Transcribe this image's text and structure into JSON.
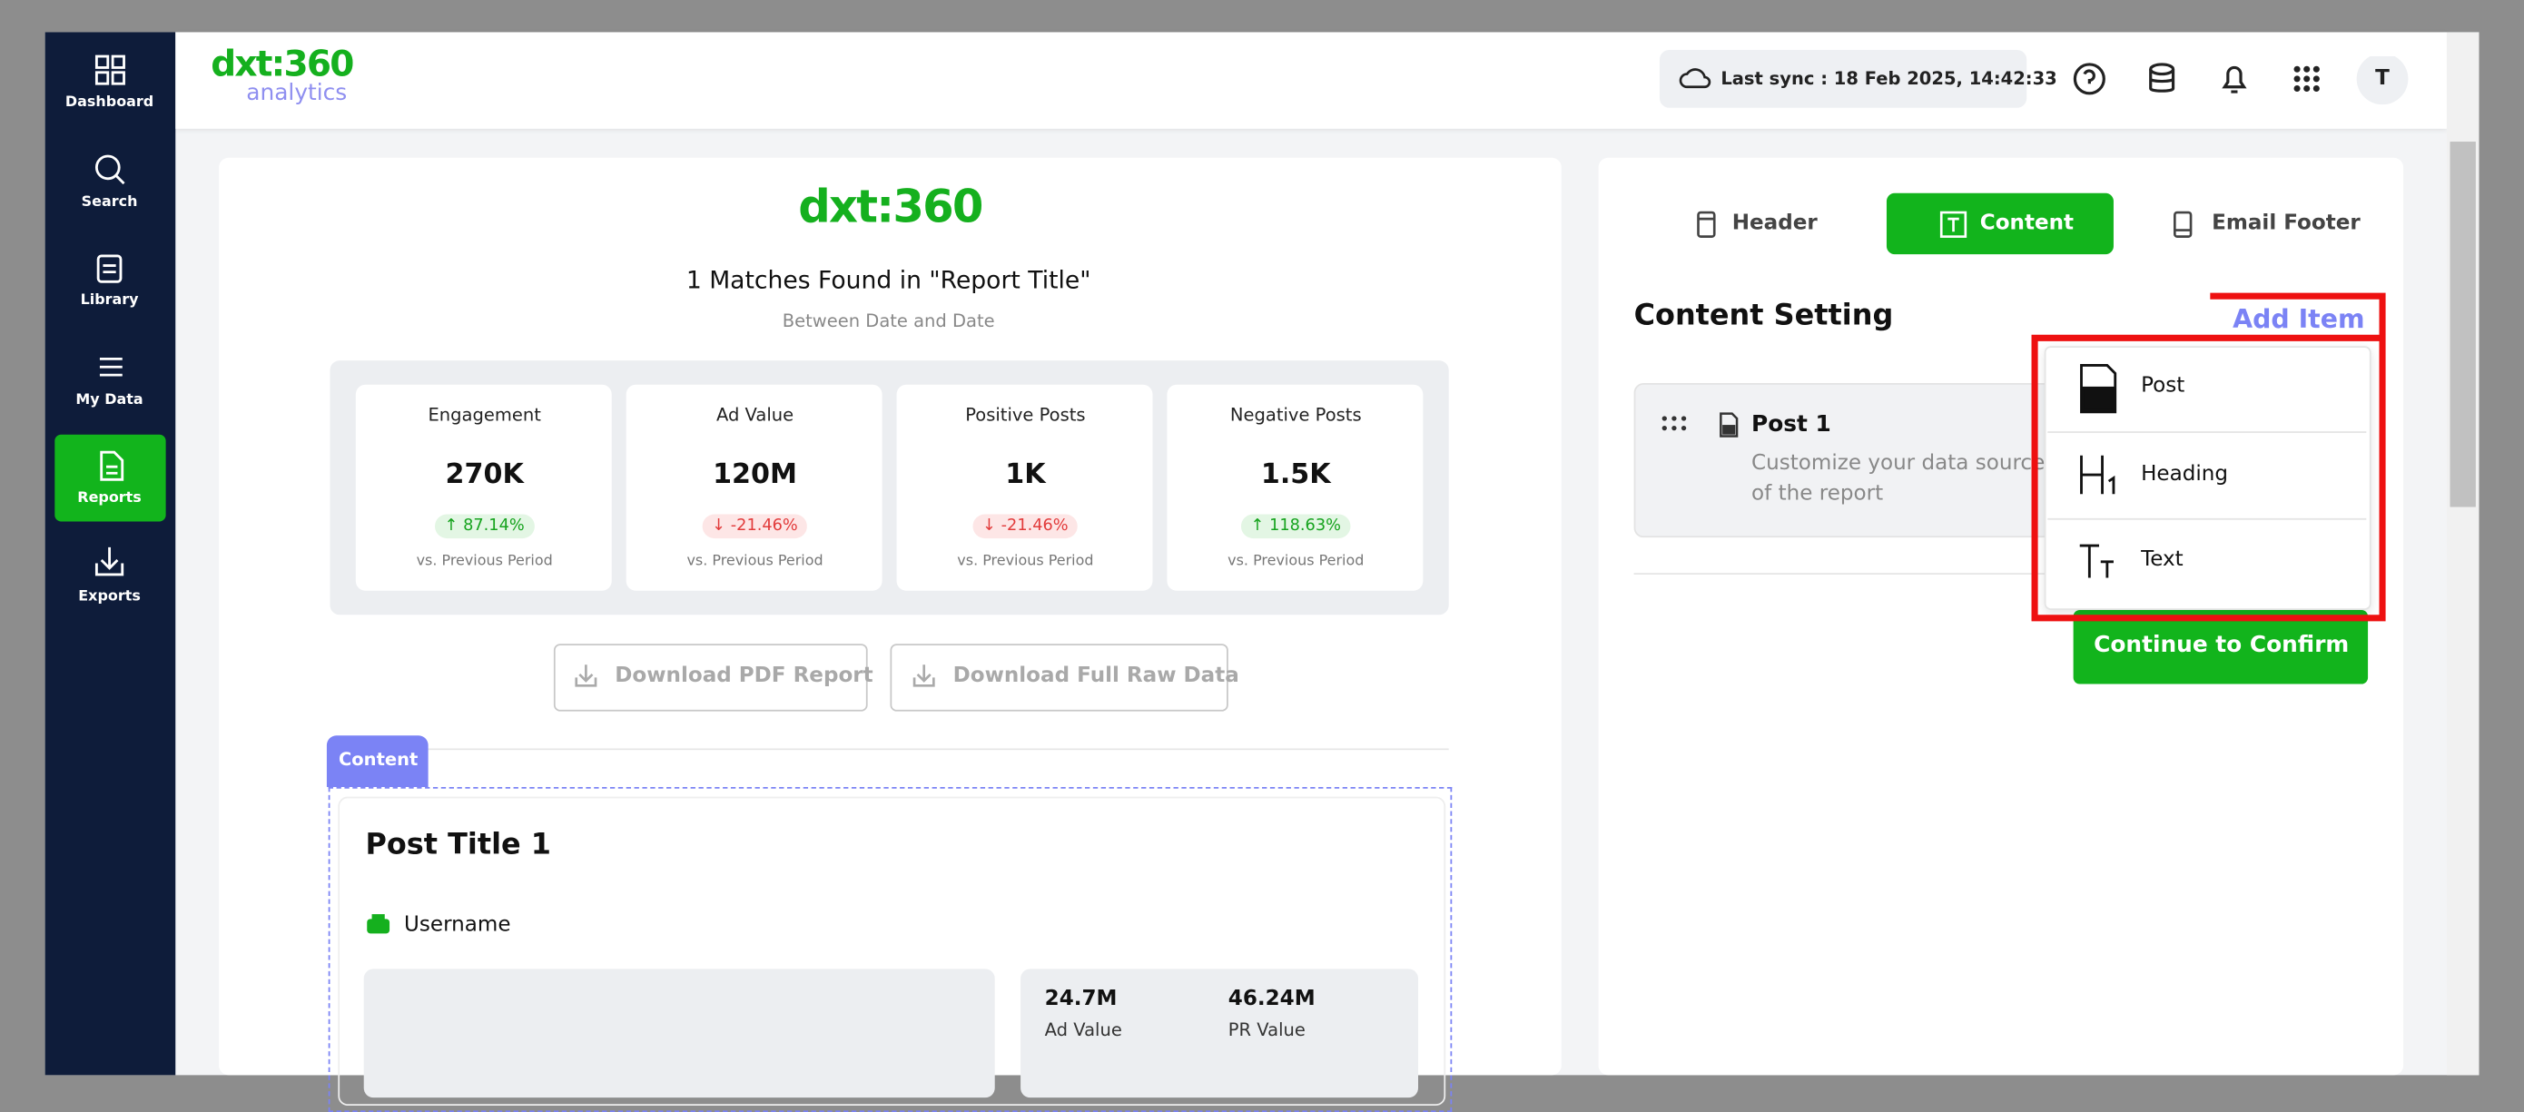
{
  "sidebar": {
    "items": [
      "Dashboard",
      "Search",
      "Library",
      "My Data",
      "Reports",
      "Exports"
    ]
  },
  "topbar": {
    "logo": "dxt:360",
    "logo_sub": "analytics",
    "sync": "Last sync : 18 Feb 2025, 14:42:33",
    "avatar": "T"
  },
  "report": {
    "logo": "dxt:360",
    "title": "1 Matches Found in \"Report Title\"",
    "subtitle": "Between Date and Date",
    "metrics": [
      {
        "label": "Engagement",
        "value": "270K",
        "change": "87.14%",
        "note": "vs. Previous Period"
      },
      {
        "label": "Ad Value",
        "value": "120M",
        "change": "-21.46%",
        "note": "vs. Previous Period"
      },
      {
        "label": "Positive Posts",
        "value": "1K",
        "change": "-21.46%",
        "note": "vs. Previous Period"
      },
      {
        "label": "Negative Posts",
        "value": "1.5K",
        "change": "118.63%",
        "note": "vs. Previous Period"
      }
    ],
    "buttons": [
      "Download PDF Report",
      "Download Full Raw Data"
    ],
    "content_tab": "Content",
    "post": {
      "title": "Post Title 1",
      "username": "Username",
      "stats": [
        {
          "value": "24.7M",
          "label": "Ad Value"
        },
        {
          "value": "46.24M",
          "label": "PR Value"
        }
      ]
    }
  },
  "settings": {
    "tabs": [
      "Header",
      "Content",
      "Email Footer"
    ],
    "title": "Content Setting",
    "add_item": "Add Item",
    "post": {
      "name": "Post 1",
      "description": [
        "Customize your data sources",
        "of the report"
      ]
    },
    "menu": [
      "Post",
      "Heading",
      "Text"
    ],
    "confirm": "Continue to Confirm"
  }
}
